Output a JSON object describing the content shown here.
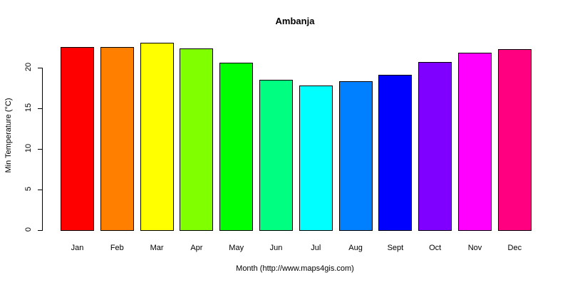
{
  "chart_data": {
    "type": "bar",
    "title": "Ambanja",
    "xlabel": "Month (http://www.maps4gis.com)",
    "ylabel": "Min Temperature (°C)",
    "categories": [
      "Jan",
      "Feb",
      "Mar",
      "Apr",
      "May",
      "Jun",
      "Jul",
      "Aug",
      "Sept",
      "Oct",
      "Nov",
      "Dec"
    ],
    "values": [
      22.6,
      22.6,
      23.2,
      22.5,
      20.7,
      18.6,
      17.9,
      18.4,
      19.2,
      20.8,
      21.9,
      22.4
    ],
    "colors": [
      "#FF0000",
      "#FF8000",
      "#FFFF00",
      "#80FF00",
      "#00FF00",
      "#00FF80",
      "#00FFFF",
      "#0080FF",
      "#0000FF",
      "#8000FF",
      "#FF00FF",
      "#FF0080"
    ],
    "yticks": [
      0,
      5,
      10,
      15,
      20
    ],
    "ylim": [
      0,
      23.2
    ],
    "grid": false,
    "legend": null
  }
}
